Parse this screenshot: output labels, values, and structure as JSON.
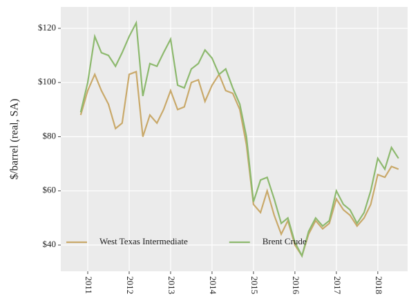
{
  "chart_data": {
    "type": "line",
    "y_label": "$/barrel (real, SA)",
    "x": [
      2010.83,
      2011.0,
      2011.17,
      2011.33,
      2011.5,
      2011.67,
      2011.83,
      2012.0,
      2012.17,
      2012.33,
      2012.5,
      2012.67,
      2012.83,
      2013.0,
      2013.17,
      2013.33,
      2013.5,
      2013.67,
      2013.83,
      2014.0,
      2014.17,
      2014.33,
      2014.5,
      2014.67,
      2014.83,
      2015.0,
      2015.17,
      2015.33,
      2015.5,
      2015.67,
      2015.83,
      2016.0,
      2016.17,
      2016.33,
      2016.5,
      2016.67,
      2016.83,
      2017.0,
      2017.17,
      2017.33,
      2017.5,
      2017.67,
      2017.83,
      2018.0,
      2018.17,
      2018.33,
      2018.5
    ],
    "series": [
      {
        "name": "West Texas Intermediate",
        "color": "#c9a96a",
        "values": [
          88,
          97,
          103,
          97,
          92,
          83,
          85,
          103,
          104,
          80,
          88,
          85,
          90,
          97,
          90,
          91,
          100,
          101,
          93,
          99,
          103,
          97,
          96,
          90,
          77,
          55,
          52,
          60,
          51,
          44,
          49,
          40,
          36,
          44,
          49,
          46,
          48,
          57,
          53,
          51,
          47,
          50,
          55,
          66,
          65,
          69,
          68
        ]
      },
      {
        "name": "Brent Crude",
        "color": "#8db96e",
        "values": [
          89,
          100,
          117,
          111,
          110,
          106,
          111,
          117,
          122,
          95,
          107,
          106,
          111,
          116,
          99,
          98,
          105,
          107,
          112,
          109,
          103,
          105,
          98,
          92,
          80,
          56,
          64,
          65,
          57,
          48,
          50,
          41,
          36,
          45,
          50,
          47,
          49,
          60,
          55,
          53,
          48,
          52,
          60,
          72,
          68,
          76,
          72
        ]
      }
    ],
    "xlim": [
      2010.35,
      2018.72
    ],
    "xticks": [
      2011,
      2012,
      2013,
      2014,
      2015,
      2016,
      2017,
      2018
    ],
    "ylim": [
      30.3,
      127.9
    ],
    "yticks": [
      {
        "value": 40,
        "label": "$40"
      },
      {
        "value": 60,
        "label": "$60"
      },
      {
        "value": 80,
        "label": "$80"
      },
      {
        "value": 100,
        "label": "$100"
      },
      {
        "value": 120,
        "label": "$120"
      }
    ],
    "grid": true,
    "legend": "bottom"
  }
}
